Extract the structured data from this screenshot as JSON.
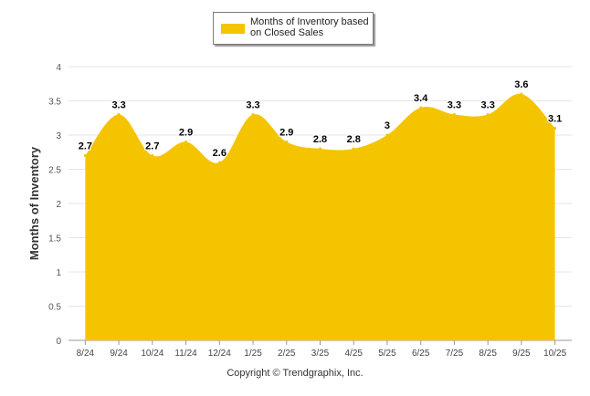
{
  "chart_data": {
    "type": "area",
    "title": "",
    "xlabel": "",
    "ylabel": "Months of Inventory",
    "ylim": [
      0,
      4
    ],
    "yticks": [
      "0",
      "0.5",
      "1",
      "1.5",
      "2",
      "2.5",
      "3",
      "3.5",
      "4"
    ],
    "categories": [
      "8/24",
      "9/24",
      "10/24",
      "11/24",
      "12/24",
      "1/25",
      "2/25",
      "3/25",
      "4/25",
      "5/25",
      "6/25",
      "7/25",
      "8/25",
      "9/25",
      "10/25"
    ],
    "series": [
      {
        "name": "Months of Inventory based on Closed Sales",
        "values": [
          2.7,
          3.3,
          2.7,
          2.9,
          2.6,
          3.3,
          2.9,
          2.8,
          2.8,
          3,
          3.4,
          3.3,
          3.3,
          3.6,
          3.1
        ],
        "labels": [
          "2.7",
          "3.3",
          "2.7",
          "2.9",
          "2.6",
          "3.3",
          "2.9",
          "2.8",
          "2.8",
          "3",
          "3.4",
          "3.3",
          "3.3",
          "3.6",
          "3.1"
        ],
        "color": "#f5c400"
      }
    ],
    "legend": {
      "line1": "Months of Inventory based",
      "line2": "on Closed Sales",
      "position": "top-center"
    },
    "grid": true
  },
  "footer": {
    "copyright": "Copyright © Trendgraphix, Inc."
  },
  "colors": {
    "area": "#f5c400",
    "grid": "#e6e6e6",
    "axis": "#999999"
  }
}
